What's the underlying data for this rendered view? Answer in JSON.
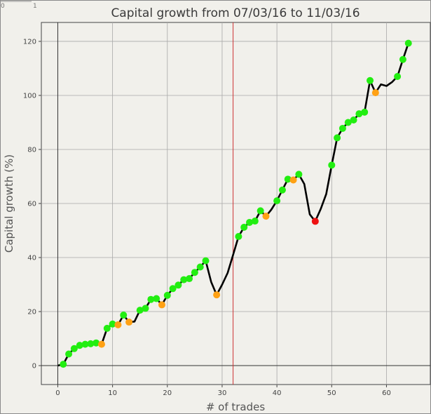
{
  "corner": {
    "left": "0",
    "right": "1"
  },
  "chart_data": {
    "type": "line",
    "title": "Capital growth from 07/03/16 to 11/03/16",
    "xlabel": "# of trades",
    "ylabel": "Capital growth (%)",
    "xlim": [
      -3,
      68
    ],
    "ylim": [
      -7,
      127
    ],
    "xticks": [
      0,
      10,
      20,
      30,
      40,
      50,
      60
    ],
    "yticks": [
      0,
      20,
      40,
      60,
      80,
      100,
      120
    ],
    "grid": true,
    "marker_line_x": 32,
    "colors": {
      "line": "#000000",
      "win": "#22ee11",
      "small_loss": "#ffa114",
      "big_loss": "#ee1111",
      "marker_line": "#cc3333",
      "grid": "#a8a8a8"
    },
    "series": [
      {
        "x": [
          0,
          1,
          2,
          3,
          4,
          5,
          6,
          7,
          8,
          9,
          10,
          11,
          12,
          13,
          14,
          15,
          16,
          17,
          18,
          19,
          20,
          21,
          22,
          23,
          24,
          25,
          26,
          27,
          28,
          29,
          30,
          31,
          32,
          33,
          34,
          35,
          36,
          37,
          38,
          39,
          40,
          41,
          42,
          43,
          44,
          45,
          46,
          47,
          48,
          49,
          50,
          51,
          52,
          53,
          54,
          55,
          56,
          57,
          58,
          59,
          60,
          61,
          62,
          63,
          64
        ],
        "y": [
          0,
          0.5,
          4.3,
          6.3,
          7.5,
          7.9,
          8.1,
          8.4,
          7.9,
          13.8,
          15.4,
          15.1,
          18.7,
          16.1,
          16.3,
          20.5,
          21.2,
          24.5,
          24.8,
          22.5,
          26,
          28.5,
          29.8,
          31.8,
          32.2,
          34.5,
          36.5,
          38.8,
          31,
          26.2,
          30,
          34.3,
          41,
          47.8,
          51.2,
          53,
          53.5,
          57.3,
          55.3,
          57.8,
          61,
          65,
          69,
          68.7,
          70.8,
          67.2,
          56,
          53.4,
          58,
          63.5,
          74.2,
          84.3,
          87.8,
          90,
          90.9,
          93.2,
          93.8,
          105.5,
          101,
          104.1,
          103.5,
          104.9,
          107,
          113.3,
          119.3
        ],
        "markers": [
          "none",
          "win",
          "win",
          "win",
          "win",
          "win",
          "win",
          "win",
          "small_loss",
          "win",
          "win",
          "small_loss",
          "win",
          "small_loss",
          "none",
          "win",
          "win",
          "win",
          "win",
          "small_loss",
          "win",
          "win",
          "win",
          "win",
          "win",
          "win",
          "win",
          "win",
          "none",
          "small_loss",
          "none",
          "none",
          "none",
          "win",
          "win",
          "win",
          "win",
          "win",
          "small_loss",
          "none",
          "win",
          "win",
          "win",
          "small_loss",
          "win",
          "none",
          "none",
          "big_loss",
          "none",
          "none",
          "win",
          "win",
          "win",
          "win",
          "win",
          "win",
          "win",
          "win",
          "small_loss",
          "none",
          "none",
          "none",
          "win",
          "win",
          "win"
        ]
      }
    ]
  }
}
